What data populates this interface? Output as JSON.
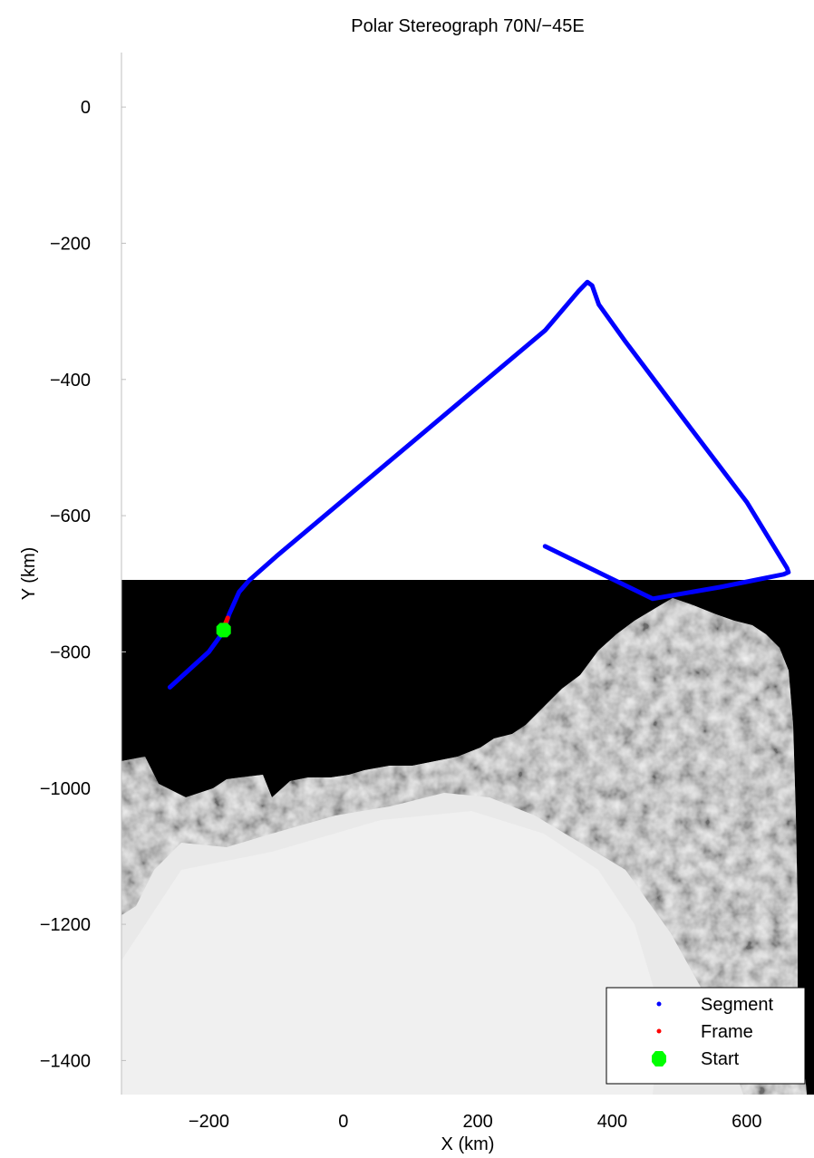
{
  "chart_data": {
    "type": "map",
    "title": "Polar Stereograph 70N/−45E",
    "xlabel": "X (km)",
    "ylabel": "Y (km)",
    "xlim": [
      -330,
      700
    ],
    "ylim": [
      -1450,
      80
    ],
    "xticks": [
      -200,
      0,
      200,
      400,
      600
    ],
    "yticks": [
      0,
      -200,
      -400,
      -600,
      -800,
      -1000,
      -1200,
      -1400
    ],
    "tick_labels_x": [
      "−200",
      "0",
      "200",
      "400",
      "600"
    ],
    "tick_labels_y": [
      "0",
      "−200",
      "−400",
      "−600",
      "−800",
      "−1000",
      "−1200",
      "−1400"
    ],
    "background_image": {
      "description_visible": "satellite mosaic with black no-data region",
      "top_y": -695
    },
    "series": [
      {
        "name": "Segment",
        "color": "#0000ff",
        "points": [
          [
            -258,
            -852
          ],
          [
            -200,
            -800
          ],
          [
            -178,
            -770
          ],
          [
            -170,
            -745
          ],
          [
            -155,
            -712
          ],
          [
            -140,
            -695
          ],
          [
            -100,
            -660
          ],
          [
            0,
            -577
          ],
          [
            100,
            -494
          ],
          [
            200,
            -411
          ],
          [
            300,
            -328
          ],
          [
            350,
            -270
          ],
          [
            363,
            -257
          ],
          [
            370,
            -262
          ],
          [
            380,
            -290
          ],
          [
            420,
            -345
          ],
          [
            500,
            -450
          ],
          [
            600,
            -580
          ],
          [
            660,
            -677
          ],
          [
            662,
            -683
          ],
          [
            655,
            -686
          ],
          [
            560,
            -705
          ],
          [
            460,
            -722
          ],
          [
            300,
            -645
          ]
        ]
      },
      {
        "name": "Frame",
        "color": "#ff0000",
        "points": [
          [
            -182,
            -775
          ],
          [
            -176,
            -760
          ],
          [
            -172,
            -750
          ]
        ]
      },
      {
        "name": "Start",
        "color": "#00ff00",
        "points": [
          [
            -178,
            -768
          ]
        ]
      }
    ],
    "legend": {
      "position": "bottom-right",
      "entries": [
        "Segment",
        "Frame",
        "Start"
      ]
    }
  }
}
